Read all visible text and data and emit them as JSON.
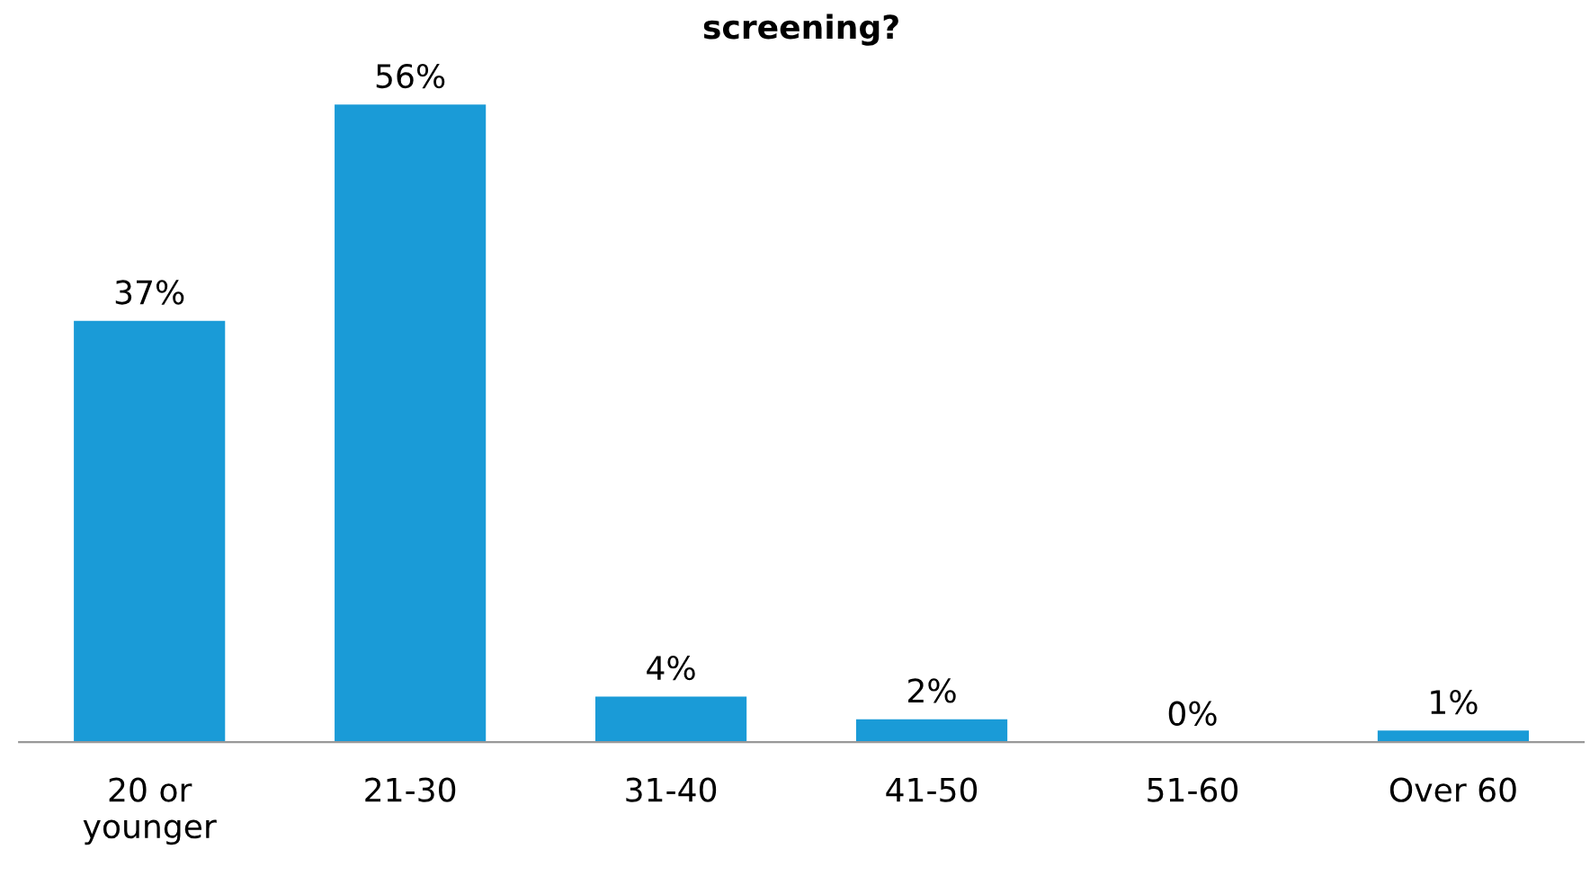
{
  "chart_data": {
    "type": "bar",
    "title": "screening?",
    "categories": [
      "20 or\nyounger",
      "21-30",
      "31-40",
      "41-50",
      "51-60",
      "Over 60"
    ],
    "values": [
      37,
      56,
      4,
      2,
      0,
      1
    ],
    "value_labels": [
      "37%",
      "56%",
      "4%",
      "2%",
      "0%",
      "1%"
    ],
    "color": "#1a9bd7",
    "grid": false,
    "legend": false
  }
}
